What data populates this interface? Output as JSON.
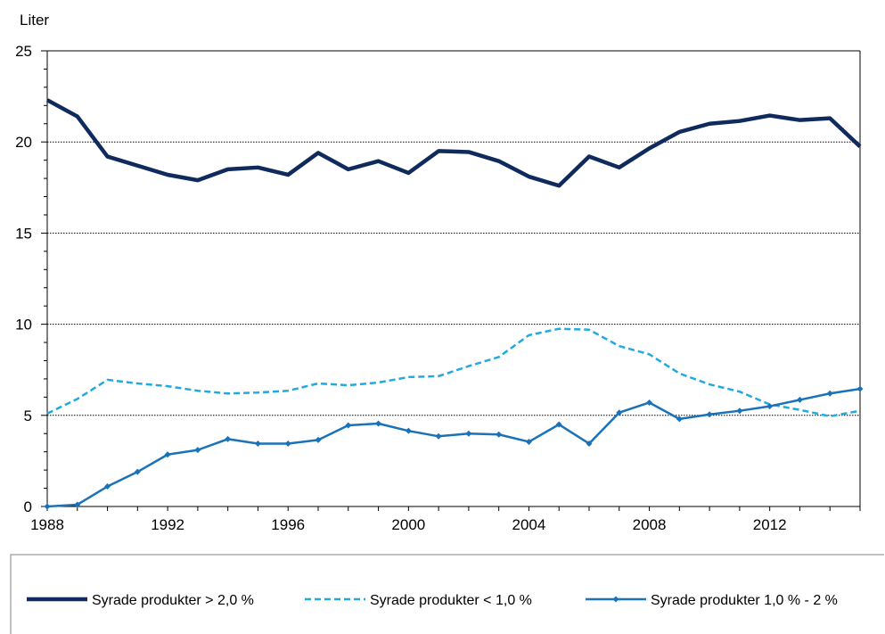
{
  "chart_data": {
    "type": "line",
    "title": "",
    "ylabel": "Liter",
    "xlabel": "",
    "xlim": [
      1988,
      2015
    ],
    "ylim": [
      0,
      25
    ],
    "y_ticks": [
      0,
      5,
      10,
      15,
      20,
      25
    ],
    "x_ticks": [
      1988,
      1992,
      1996,
      2000,
      2004,
      2008,
      2012
    ],
    "grid": "horizontal",
    "legend_position": "bottom",
    "x": [
      1988,
      1989,
      1990,
      1991,
      1992,
      1993,
      1994,
      1995,
      1996,
      1997,
      1998,
      1999,
      2000,
      2001,
      2002,
      2003,
      2004,
      2005,
      2006,
      2007,
      2008,
      2009,
      2010,
      2011,
      2012,
      2013,
      2014,
      2015
    ],
    "series": [
      {
        "name": "Syrade produkter > 2,0 %",
        "color": "#0f2a5c",
        "style": "solid-thick",
        "values": [
          22.3,
          21.4,
          19.2,
          18.7,
          18.2,
          17.9,
          18.5,
          18.6,
          18.2,
          19.4,
          18.5,
          18.95,
          18.3,
          19.5,
          19.45,
          18.95,
          18.1,
          17.6,
          19.2,
          18.6,
          19.65,
          20.55,
          21.0,
          21.15,
          21.45,
          21.2,
          21.3,
          19.75
        ]
      },
      {
        "name": "Syrade produkter < 1,0 %",
        "color": "#22a9e0",
        "style": "dashed",
        "values": [
          5.1,
          5.9,
          6.95,
          6.75,
          6.6,
          6.35,
          6.2,
          6.25,
          6.35,
          6.75,
          6.65,
          6.8,
          7.1,
          7.15,
          7.7,
          8.2,
          9.4,
          9.75,
          9.7,
          8.8,
          8.35,
          7.3,
          6.7,
          6.3,
          5.6,
          5.3,
          4.95,
          5.25
        ]
      },
      {
        "name": "Syrade produkter 1,0 % - 2 %",
        "color": "#1a72b8",
        "style": "solid-marker",
        "values": [
          0.0,
          0.1,
          1.1,
          1.9,
          2.85,
          3.1,
          3.7,
          3.45,
          3.45,
          3.65,
          4.45,
          4.55,
          4.15,
          3.85,
          4.0,
          3.95,
          3.55,
          4.5,
          3.45,
          5.15,
          5.7,
          4.8,
          5.05,
          5.25,
          5.5,
          5.85,
          6.2,
          6.45
        ]
      }
    ]
  }
}
